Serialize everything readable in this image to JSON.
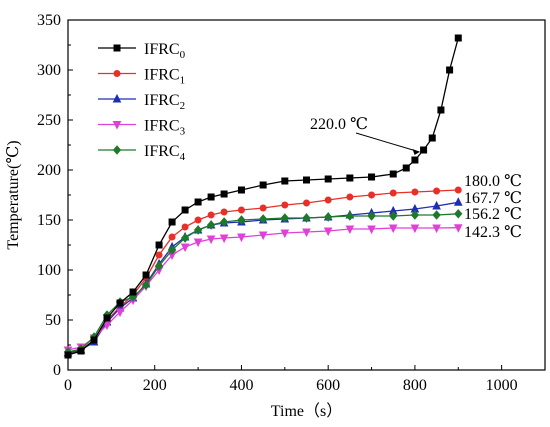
{
  "chart_data": {
    "type": "line",
    "xlabel": "Time（s）",
    "ylabel": "Temperature(℃)",
    "xlim": [
      0,
      1100
    ],
    "ylim": [
      0,
      350
    ],
    "xticks": [
      0,
      200,
      400,
      600,
      800,
      1000
    ],
    "yticks": [
      0,
      50,
      100,
      150,
      200,
      250,
      300,
      350
    ],
    "xtick_labels": [
      "0",
      "200",
      "400",
      "600",
      "800",
      "1000"
    ],
    "ytick_labels": [
      "0",
      "50",
      "100",
      "150",
      "200",
      "250",
      "300",
      "350"
    ],
    "grid": false,
    "legend_position": "top-left",
    "series": [
      {
        "name": "IFRC",
        "subscript": "0",
        "color": "#000000",
        "marker": "square",
        "x": [
          0,
          30,
          60,
          90,
          120,
          150,
          180,
          210,
          240,
          270,
          300,
          330,
          360,
          400,
          450,
          500,
          550,
          600,
          650,
          700,
          750,
          780,
          800,
          820,
          840,
          860,
          880,
          900
        ],
        "y": [
          15,
          19,
          30,
          52,
          67,
          78,
          95,
          125,
          148,
          160,
          168,
          173,
          176,
          180,
          185,
          189,
          190,
          191,
          192,
          193,
          196,
          202,
          210,
          220,
          232,
          260,
          300,
          332
        ]
      },
      {
        "name": "IFRC",
        "subscript": "1",
        "color": "#e8302a",
        "marker": "circle",
        "x": [
          0,
          30,
          60,
          90,
          120,
          150,
          180,
          210,
          240,
          270,
          300,
          330,
          360,
          400,
          450,
          500,
          550,
          600,
          650,
          700,
          750,
          800,
          850,
          900
        ],
        "y": [
          16,
          20,
          30,
          50,
          63,
          75,
          92,
          115,
          133,
          143,
          150,
          155,
          158,
          160,
          162,
          165,
          167,
          170,
          173,
          175,
          177,
          178,
          179,
          180
        ]
      },
      {
        "name": "IFRC",
        "subscript": "2",
        "color": "#1f2fb3",
        "marker": "triangle-up",
        "x": [
          0,
          30,
          60,
          90,
          120,
          150,
          180,
          210,
          240,
          270,
          300,
          330,
          360,
          400,
          450,
          500,
          550,
          600,
          650,
          700,
          750,
          800,
          850,
          900
        ],
        "y": [
          17,
          20,
          28,
          48,
          62,
          72,
          86,
          106,
          123,
          133,
          140,
          145,
          147,
          148,
          150,
          151,
          152,
          153,
          155,
          157,
          159,
          161,
          164,
          167.7
        ]
      },
      {
        "name": "IFRC",
        "subscript": "3",
        "color": "#e040d8",
        "marker": "triangle-down",
        "x": [
          0,
          30,
          60,
          90,
          120,
          150,
          180,
          210,
          240,
          270,
          300,
          330,
          360,
          400,
          450,
          500,
          550,
          600,
          650,
          700,
          750,
          800,
          850,
          900
        ],
        "y": [
          20,
          23,
          32,
          45,
          58,
          70,
          84,
          100,
          115,
          123,
          128,
          131,
          132,
          133,
          135,
          137,
          138,
          139,
          141,
          141,
          142,
          142,
          142,
          142.3
        ]
      },
      {
        "name": "IFRC",
        "subscript": "4",
        "color": "#1e7a2a",
        "marker": "diamond",
        "x": [
          0,
          30,
          60,
          90,
          120,
          150,
          180,
          210,
          240,
          270,
          300,
          330,
          360,
          400,
          450,
          500,
          550,
          600,
          650,
          700,
          750,
          800,
          850,
          900
        ],
        "y": [
          18,
          21,
          33,
          55,
          68,
          73,
          85,
          104,
          120,
          132,
          140,
          145,
          148,
          150,
          151,
          152,
          152,
          153,
          154,
          154,
          154,
          155,
          155,
          156.2
        ]
      }
    ],
    "annotations": [
      {
        "text": "220.0 ℃",
        "x": 820,
        "y": 220
      },
      {
        "text": "180.0 ℃",
        "x": 900,
        "y": 180
      },
      {
        "text": "167.7 ℃",
        "x": 900,
        "y": 167.7
      },
      {
        "text": "156.2 ℃",
        "x": 900,
        "y": 156.2
      },
      {
        "text": "142.3 ℃",
        "x": 900,
        "y": 142.3
      }
    ]
  }
}
